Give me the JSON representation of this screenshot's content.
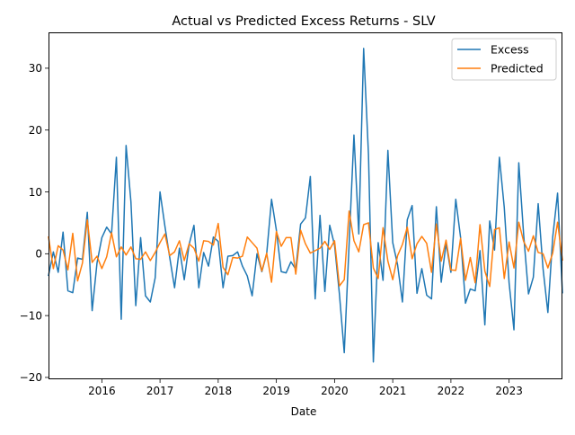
{
  "chart_data": {
    "type": "line",
    "title": "Actual vs Predicted Excess Returns - SLV",
    "xlabel": "Date",
    "ylabel": "",
    "x_start": "2015-02",
    "x_end": "2023-12",
    "xlim": [
      "2015-02",
      "2023-12"
    ],
    "ylim": [
      -20.3,
      35.8
    ],
    "x_ticks": [
      {
        "label": "2016",
        "date": "2016-01"
      },
      {
        "label": "2017",
        "date": "2017-01"
      },
      {
        "label": "2018",
        "date": "2018-01"
      },
      {
        "label": "2019",
        "date": "2019-01"
      },
      {
        "label": "2020",
        "date": "2020-01"
      },
      {
        "label": "2021",
        "date": "2021-01"
      },
      {
        "label": "2022",
        "date": "2022-01"
      },
      {
        "label": "2023",
        "date": "2023-01"
      }
    ],
    "y_ticks": [
      {
        "label": "−20",
        "value": -20
      },
      {
        "label": "−10",
        "value": -10
      },
      {
        "label": "0",
        "value": 0
      },
      {
        "label": "10",
        "value": 10
      },
      {
        "label": "20",
        "value": 20
      },
      {
        "label": "30",
        "value": 30
      }
    ],
    "grid": false,
    "legend_position": "top-right",
    "series": [
      {
        "name": "Excess",
        "color": "#1f77b4",
        "values": [
          -3.5,
          0.3,
          -3.0,
          3.5,
          -6.0,
          -6.3,
          -0.7,
          -0.9,
          6.7,
          -9.2,
          -1.5,
          2.6,
          4.3,
          3.2,
          15.6,
          -10.6,
          17.5,
          8.4,
          -8.4,
          2.6,
          -6.8,
          -7.8,
          -3.9,
          10.0,
          4.5,
          -0.6,
          -5.5,
          0.9,
          -4.2,
          1.5,
          4.6,
          -5.5,
          0.2,
          -2.0,
          2.7,
          2.0,
          -5.5,
          -0.4,
          -0.3,
          0.3,
          -2.0,
          -3.6,
          -6.8,
          0.0,
          -2.9,
          0.0,
          8.8,
          3.8,
          -2.9,
          -3.1,
          -1.3,
          -2.5,
          4.8,
          5.8,
          12.5,
          -7.3,
          6.2,
          -6.1,
          4.6,
          1.4,
          -6.5,
          -16.0,
          1.5,
          19.2,
          3.2,
          33.2,
          16.0,
          -17.5,
          1.8,
          -4.3,
          16.7,
          1.8,
          -1.8,
          -7.8,
          5.5,
          7.8,
          -6.4,
          -2.4,
          -6.7,
          -7.3,
          7.6,
          -4.6,
          1.7,
          -3.0,
          8.8,
          2.6,
          -8.0,
          -5.7,
          -6.0,
          0.5,
          -11.5,
          5.3,
          0.6,
          15.6,
          7.5,
          -4.7,
          -12.3,
          14.7,
          3.1,
          -6.5,
          -3.8,
          8.1,
          -2.4,
          -9.5,
          2.7,
          9.8,
          -6.3
        ]
      },
      {
        "name": "Predicted",
        "color": "#ff7f0e",
        "values": [
          2.7,
          -2.4,
          1.3,
          0.6,
          -2.6,
          3.3,
          -4.4,
          -1.5,
          5.5,
          -1.4,
          -0.4,
          -2.4,
          -0.5,
          3.4,
          -0.5,
          1.1,
          -0.2,
          1.1,
          -0.8,
          -0.9,
          0.3,
          -1.1,
          0.2,
          1.8,
          3.2,
          -0.3,
          0.3,
          2.1,
          -1.1,
          1.6,
          0.9,
          -1.2,
          2.1,
          2.0,
          1.4,
          4.9,
          -2.2,
          -3.4,
          -0.6,
          -0.7,
          -0.4,
          2.7,
          1.8,
          0.9,
          -2.8,
          0.1,
          -4.6,
          3.6,
          1.2,
          2.6,
          2.6,
          -3.3,
          3.8,
          1.6,
          0.1,
          0.5,
          0.9,
          2.0,
          0.7,
          2.1,
          -5.2,
          -4.2,
          6.9,
          2.1,
          0.3,
          4.7,
          5.0,
          -2.3,
          -4.0,
          4.2,
          -1.2,
          -4.2,
          -0.3,
          1.5,
          4.3,
          -0.8,
          1.6,
          2.8,
          1.7,
          -3.0,
          4.8,
          -1.2,
          2.2,
          -2.6,
          -2.7,
          2.5,
          -4.3,
          -0.6,
          -4.7,
          4.7,
          -2.8,
          -5.3,
          3.9,
          4.2,
          -4.0,
          1.9,
          -2.3,
          5.1,
          2.0,
          0.4,
          2.9,
          0.2,
          0.0,
          -2.3,
          0.1,
          5.1,
          -1.0
        ]
      }
    ]
  }
}
